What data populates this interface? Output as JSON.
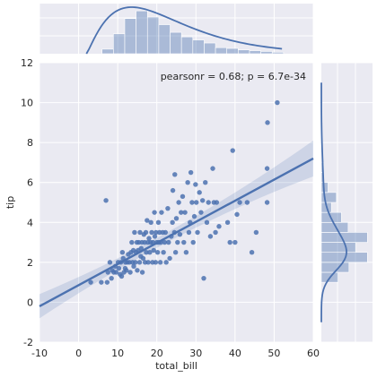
{
  "chart_data": {
    "type": "scatter",
    "title": "",
    "xlabel": "total_bill",
    "ylabel": "tip",
    "xlim": [
      -10,
      60
    ],
    "ylim": [
      -2,
      12
    ],
    "xticks": [
      "-10",
      "0",
      "10",
      "20",
      "30",
      "40",
      "50",
      "60"
    ],
    "yticks": [
      "-2",
      "0",
      "2",
      "4",
      "6",
      "8",
      "10",
      "12"
    ],
    "annotation": "pearsonr = 0.68; p = 6.7e-34",
    "grid": true,
    "colors": {
      "points": "#4c72b0",
      "background": "#eaeaf2",
      "grid": "#ffffff"
    },
    "regression": {
      "x": [
        -10,
        60
      ],
      "y": [
        -0.2,
        7.2
      ],
      "ci_halfwidth_at_mean": 0.25,
      "ci_halfwidth_at_edges": 0.9
    },
    "points": [
      [
        3.1,
        1.0
      ],
      [
        5.8,
        1.0
      ],
      [
        7.3,
        1.0
      ],
      [
        7.0,
        5.1
      ],
      [
        7.5,
        1.5
      ],
      [
        8.0,
        2.0
      ],
      [
        8.4,
        1.2
      ],
      [
        8.6,
        1.6
      ],
      [
        9.0,
        1.5
      ],
      [
        9.4,
        1.8
      ],
      [
        9.6,
        1.5
      ],
      [
        10.1,
        2.0
      ],
      [
        10.3,
        1.7
      ],
      [
        10.6,
        1.4
      ],
      [
        10.8,
        2.0
      ],
      [
        11.0,
        1.3
      ],
      [
        11.2,
        2.5
      ],
      [
        11.4,
        2.2
      ],
      [
        11.6,
        1.5
      ],
      [
        11.9,
        1.7
      ],
      [
        12.0,
        2.0
      ],
      [
        12.2,
        1.6
      ],
      [
        12.5,
        2.0
      ],
      [
        12.7,
        2.4
      ],
      [
        13.0,
        2.0
      ],
      [
        13.2,
        1.5
      ],
      [
        13.4,
        2.5
      ],
      [
        13.6,
        3.0
      ],
      [
        13.8,
        2.0
      ],
      [
        14.0,
        2.6
      ],
      [
        14.1,
        1.8
      ],
      [
        14.3,
        3.5
      ],
      [
        14.5,
        2.0
      ],
      [
        14.7,
        2.5
      ],
      [
        14.9,
        3.0
      ],
      [
        15.0,
        1.6
      ],
      [
        15.2,
        2.6
      ],
      [
        15.4,
        3.0
      ],
      [
        15.6,
        2.0
      ],
      [
        15.7,
        3.5
      ],
      [
        15.9,
        2.3
      ],
      [
        16.0,
        2.7
      ],
      [
        16.2,
        3.0
      ],
      [
        16.3,
        1.5
      ],
      [
        16.5,
        2.2
      ],
      [
        16.7,
        3.4
      ],
      [
        16.9,
        3.0
      ],
      [
        17.0,
        2.0
      ],
      [
        17.2,
        3.5
      ],
      [
        17.3,
        2.5
      ],
      [
        17.5,
        4.1
      ],
      [
        17.7,
        3.0
      ],
      [
        17.8,
        2.0
      ],
      [
        18.0,
        3.2
      ],
      [
        18.2,
        2.5
      ],
      [
        18.4,
        3.0
      ],
      [
        18.5,
        4.0
      ],
      [
        18.7,
        3.5
      ],
      [
        18.9,
        2.0
      ],
      [
        19.0,
        3.0
      ],
      [
        19.2,
        2.6
      ],
      [
        19.4,
        4.5
      ],
      [
        19.5,
        3.3
      ],
      [
        19.7,
        2.0
      ],
      [
        19.8,
        3.5
      ],
      [
        20.0,
        3.0
      ],
      [
        20.2,
        2.5
      ],
      [
        20.4,
        4.0
      ],
      [
        20.5,
        3.0
      ],
      [
        20.7,
        3.5
      ],
      [
        20.9,
        2.0
      ],
      [
        21.0,
        3.0
      ],
      [
        21.2,
        4.5
      ],
      [
        21.5,
        3.5
      ],
      [
        21.7,
        2.5
      ],
      [
        22.0,
        3.0
      ],
      [
        22.2,
        3.5
      ],
      [
        22.4,
        2.0
      ],
      [
        22.8,
        4.7
      ],
      [
        23.0,
        3.0
      ],
      [
        23.3,
        2.2
      ],
      [
        23.7,
        3.3
      ],
      [
        24.0,
        4.0
      ],
      [
        24.1,
        5.6
      ],
      [
        24.5,
        3.5
      ],
      [
        24.6,
        6.4
      ],
      [
        24.8,
        2.5
      ],
      [
        25.0,
        4.2
      ],
      [
        25.3,
        3.0
      ],
      [
        25.6,
        5.0
      ],
      [
        25.9,
        3.4
      ],
      [
        26.2,
        4.5
      ],
      [
        26.6,
        5.3
      ],
      [
        26.9,
        3.0
      ],
      [
        27.2,
        4.5
      ],
      [
        27.5,
        2.5
      ],
      [
        27.9,
        6.0
      ],
      [
        28.2,
        3.5
      ],
      [
        28.5,
        4.0
      ],
      [
        28.7,
        6.5
      ],
      [
        29.0,
        5.0
      ],
      [
        29.3,
        3.0
      ],
      [
        29.6,
        4.3
      ],
      [
        29.9,
        5.9
      ],
      [
        30.1,
        5.0
      ],
      [
        30.4,
        3.5
      ],
      [
        30.9,
        5.5
      ],
      [
        31.3,
        4.5
      ],
      [
        31.7,
        5.1
      ],
      [
        32.0,
        1.2
      ],
      [
        32.4,
        6.0
      ],
      [
        32.8,
        4.0
      ],
      [
        33.2,
        5.0
      ],
      [
        33.7,
        3.3
      ],
      [
        34.3,
        6.7
      ],
      [
        34.6,
        5.0
      ],
      [
        35.0,
        3.5
      ],
      [
        35.3,
        5.0
      ],
      [
        35.9,
        3.8
      ],
      [
        38.1,
        4.0
      ],
      [
        38.7,
        3.0
      ],
      [
        39.4,
        7.6
      ],
      [
        40.0,
        3.0
      ],
      [
        40.5,
        4.4
      ],
      [
        41.2,
        5.0
      ],
      [
        43.1,
        5.0
      ],
      [
        44.3,
        2.5
      ],
      [
        45.4,
        3.5
      ],
      [
        48.2,
        6.7
      ],
      [
        48.3,
        9.0
      ],
      [
        48.2,
        5.0
      ],
      [
        50.8,
        10.0
      ]
    ],
    "x_marginal": {
      "bin_edges": [
        6,
        8.9,
        11.8,
        14.7,
        17.6,
        20.5,
        23.4,
        26.3,
        29.2,
        32.1,
        35,
        37.9,
        40.8,
        43.7,
        46.6,
        49.5,
        52.4
      ],
      "counts": [
        6,
        26,
        46,
        56,
        48,
        38,
        28,
        22,
        18,
        14,
        8,
        7,
        5,
        4,
        3,
        2
      ],
      "kde_range": [
        2,
        52
      ]
    },
    "y_marginal": {
      "bin_edges": [
        1,
        1.5,
        2,
        2.5,
        3,
        3.5,
        4,
        4.5,
        5,
        5.5,
        6,
        6.5,
        7,
        7.5,
        8,
        8.5,
        9,
        9.5,
        10
      ],
      "counts": [
        20,
        33,
        55,
        41,
        55,
        32,
        24,
        12,
        18,
        8,
        3,
        3,
        0,
        1,
        0,
        0,
        1,
        1
      ],
      "kde_range": [
        -1,
        11
      ]
    }
  }
}
